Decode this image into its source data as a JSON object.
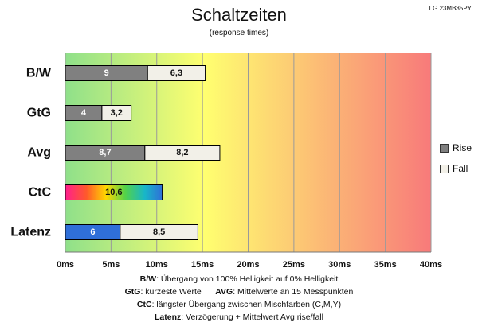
{
  "title": "Schaltzeiten",
  "subtitle": "(response times)",
  "model": "LG 23MB35PY",
  "legend": {
    "rise": "Rise",
    "fall": "Fall"
  },
  "notes": [
    {
      "terms": [
        {
          "key": "B/W",
          "text": ":  Übergang von 100% Helligkeit auf 0% Helligkeit"
        }
      ]
    },
    {
      "terms": [
        {
          "key": "GtG",
          "text": ": kürzeste  Werte"
        },
        {
          "key": "AVG",
          "text": ": Mittelwerte  an 15 Messpunkten"
        }
      ]
    },
    {
      "terms": [
        {
          "key": "CtC",
          "text": ": längster Übergang  zwischen Mischfarben (C,M,Y)"
        }
      ]
    },
    {
      "terms": [
        {
          "key": "Latenz",
          "text": ": Verzögerung  + Mittelwert Avg rise/fall"
        }
      ]
    }
  ],
  "colors": {
    "rise": "#808080",
    "fall": "#f2f0e8",
    "latency": "#2f6fd8",
    "background_gradient": [
      "#8fe08a",
      "#ffff70",
      "#f87a7a"
    ]
  },
  "chart_data": {
    "type": "bar",
    "orientation": "horizontal",
    "stacked": true,
    "categories": [
      "B/W",
      "GtG",
      "Avg",
      "CtC",
      "Latenz"
    ],
    "series": [
      {
        "name": "Rise",
        "values": [
          9,
          4,
          8.7,
          null,
          null
        ],
        "labels": [
          "9",
          "4",
          "8,7",
          "",
          ""
        ]
      },
      {
        "name": "Fall",
        "values": [
          6.3,
          3.2,
          8.2,
          null,
          8.5
        ],
        "labels": [
          "6,3",
          "3,2",
          "8,2",
          "",
          "8,5"
        ]
      }
    ],
    "special": [
      {
        "category": "CtC",
        "value": 10.6,
        "label": "10,6",
        "fill": "rainbow"
      },
      {
        "category": "Latenz",
        "value": 6,
        "label": "6",
        "fill": "latency"
      }
    ],
    "xticks": [
      "0ms",
      "5ms",
      "10ms",
      "15ms",
      "20ms",
      "25ms",
      "30ms",
      "35ms",
      "40ms"
    ],
    "xlim": [
      0,
      40
    ],
    "grid": true,
    "legend_position": "right"
  }
}
